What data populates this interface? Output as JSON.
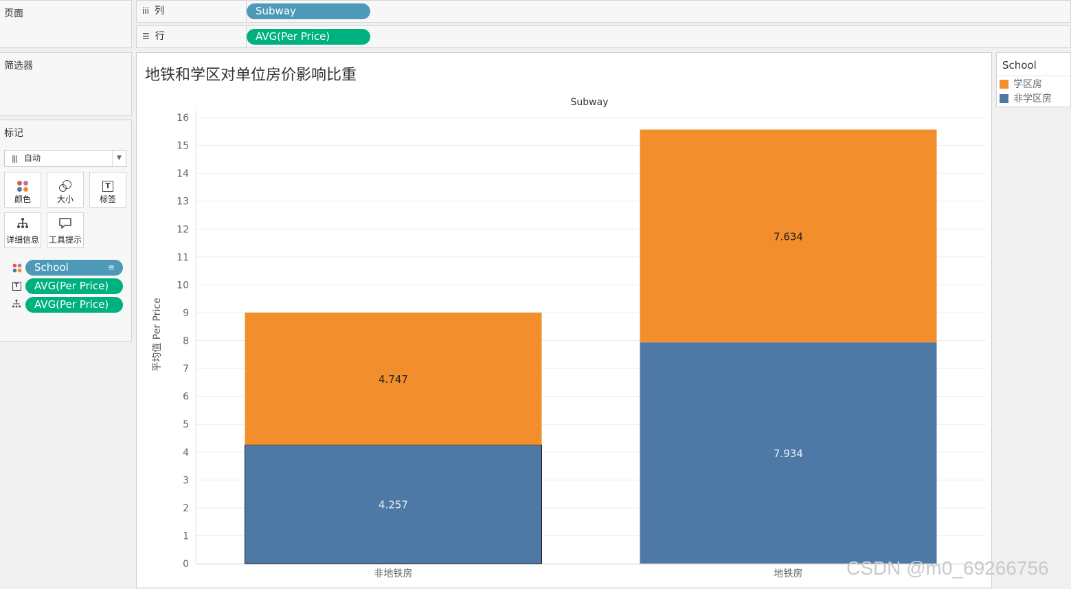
{
  "panels": {
    "pages_title": "页面",
    "filters_title": "筛选器",
    "marks_title": "标记"
  },
  "marks": {
    "type": "自动",
    "buttons": [
      {
        "name": "color",
        "label": "颜色",
        "icon": "color-dots-icon"
      },
      {
        "name": "size",
        "label": "大小",
        "icon": "size-circles-icon"
      },
      {
        "name": "label",
        "label": "标签",
        "icon": "text-label-icon"
      },
      {
        "name": "detail",
        "label": "详细信息",
        "icon": "detail-tree-icon"
      },
      {
        "name": "tooltip",
        "label": "工具提示",
        "icon": "speech-bubble-icon"
      }
    ],
    "pills": [
      {
        "icon": "color-dots-icon",
        "label": "School",
        "kind": "dimension"
      },
      {
        "icon": "text-label-icon",
        "label": "AVG(Per Price)",
        "kind": "measure"
      },
      {
        "icon": "detail-tree-icon",
        "label": "AVG(Per Price)",
        "kind": "measure"
      }
    ]
  },
  "shelves": {
    "columns_label": "列",
    "columns_pill": "Subway",
    "rows_label": "行",
    "rows_pill": "AVG(Per Price)"
  },
  "legend": {
    "title": "School",
    "items": [
      {
        "label": "学区房",
        "color": "#f28e2b"
      },
      {
        "label": "非学区房",
        "color": "#4e79a7"
      }
    ]
  },
  "watermark": "CSDN @m0_69266756",
  "chart_data": {
    "type": "bar",
    "stacked": true,
    "title": "地铁和学区对单位房价影响比重",
    "header": "Subway",
    "xlabel": "",
    "ylabel": "平均值 Per Price",
    "categories": [
      "非地铁房",
      "地铁房"
    ],
    "series": [
      {
        "name": "非学区房",
        "color": "#4e79a7",
        "values": [
          4.257,
          7.934
        ]
      },
      {
        "name": "学区房",
        "color": "#f28e2b",
        "values": [
          4.747,
          7.634
        ]
      }
    ],
    "ylim": [
      0,
      16
    ],
    "yticks": [
      0,
      1,
      2,
      3,
      4,
      5,
      6,
      7,
      8,
      9,
      10,
      11,
      12,
      13,
      14,
      15,
      16
    ],
    "grid": true,
    "legend_position": "right"
  }
}
